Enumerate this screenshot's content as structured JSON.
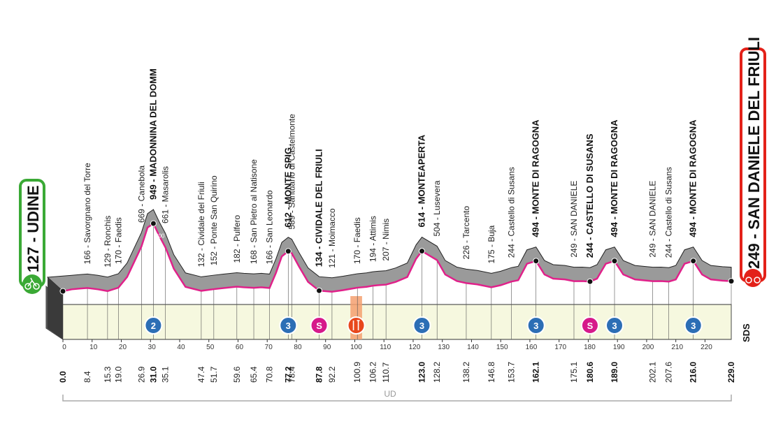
{
  "start": {
    "altitude": "127",
    "name": "UDINE",
    "label": "127 - UDINE",
    "color": "#3aa935"
  },
  "finish": {
    "altitude": "249",
    "name": "SAN DANIELE DEL FRIULI",
    "label": "249 - SAN DANIELE DEL FRIULI",
    "color": "#e32119"
  },
  "logo_text": "SDS",
  "region_label": "UD",
  "altitude_ticks": [
    "800",
    "600",
    "400",
    "200"
  ],
  "colors": {
    "profile_fill": "#9a9a9a",
    "profile_dark": "#3a3a3a",
    "base_fill": "#f6f8df",
    "route_line": "#e0218a",
    "feed_zone": "#f4a070",
    "kom_badge": "#2c6eb5",
    "sprint_badge": "#d6198a"
  },
  "chart_data": {
    "type": "elevation_profile",
    "x_unit": "km",
    "total_km": 229.0,
    "km_ticks": [
      "0",
      "10",
      "20",
      "30",
      "40",
      "50",
      "60",
      "70",
      "80",
      "90",
      "100",
      "110",
      "120",
      "130",
      "140",
      "150",
      "160",
      "170",
      "180",
      "190",
      "200",
      "210",
      "220"
    ],
    "distance_markers": [
      {
        "km": "0.0",
        "bold": true
      },
      {
        "km": "8.4"
      },
      {
        "km": "15.3"
      },
      {
        "km": "19.0"
      },
      {
        "km": "26.9"
      },
      {
        "km": "31.0",
        "bold": true
      },
      {
        "km": "35.1"
      },
      {
        "km": "47.4"
      },
      {
        "km": "51.7"
      },
      {
        "km": "59.6"
      },
      {
        "km": "65.4"
      },
      {
        "km": "70.8"
      },
      {
        "km": "77.2",
        "bold": true
      },
      {
        "km": "78.4"
      },
      {
        "km": "87.8",
        "bold": true
      },
      {
        "km": "92.2"
      },
      {
        "km": "100.9"
      },
      {
        "km": "106.2"
      },
      {
        "km": "110.7"
      },
      {
        "km": "123.0",
        "bold": true
      },
      {
        "km": "128.2"
      },
      {
        "km": "138.2"
      },
      {
        "km": "146.8"
      },
      {
        "km": "153.7"
      },
      {
        "km": "162.1",
        "bold": true
      },
      {
        "km": "175.1"
      },
      {
        "km": "180.6",
        "bold": true
      },
      {
        "km": "189.0",
        "bold": true
      },
      {
        "km": "202.1"
      },
      {
        "km": "207.6"
      },
      {
        "km": "216.0",
        "bold": true
      },
      {
        "km": "229.0",
        "bold": true
      }
    ],
    "places": [
      {
        "km": 8.4,
        "label": "166 - Savorgnano del Torre"
      },
      {
        "km": 15.3,
        "label": "129 - Ronchis"
      },
      {
        "km": 19.0,
        "label": "170 - Faedis"
      },
      {
        "km": 26.9,
        "label": "669 - Canebola"
      },
      {
        "km": 31.0,
        "label": "949 - MADONNINA DEL DOMM",
        "bold": true
      },
      {
        "km": 35.1,
        "label": "661 - Masarolis"
      },
      {
        "km": 47.4,
        "label": "132 - Cividale del Friuli"
      },
      {
        "km": 51.7,
        "label": "152 - Ponte San Quirino"
      },
      {
        "km": 59.6,
        "label": "182 - Pulfero"
      },
      {
        "km": 65.4,
        "label": "168 - San Pietro al Natisone"
      },
      {
        "km": 70.8,
        "label": "166 - San Leonardo"
      },
      {
        "km": 77.2,
        "label": "612 - MONTE SPIG",
        "bold": true
      },
      {
        "km": 78.4,
        "label": "589 - Santuario di Castelmonte"
      },
      {
        "km": 87.8,
        "label": "134 - CIVIDALE DEL FRIULI",
        "bold": true
      },
      {
        "km": 92.2,
        "label": "121 - Moimacco"
      },
      {
        "km": 100.9,
        "label": "170 - Faedis"
      },
      {
        "km": 106.2,
        "label": "194 - Attimis"
      },
      {
        "km": 110.7,
        "label": "207 - Nimis"
      },
      {
        "km": 123.0,
        "label": "614 - MONTEAPERTA",
        "bold": true
      },
      {
        "km": 128.2,
        "label": "504 - Lusevera"
      },
      {
        "km": 138.2,
        "label": "226 - Tarcento"
      },
      {
        "km": 146.8,
        "label": "175 - Buja"
      },
      {
        "km": 153.7,
        "label": "244 - Castello di Susans"
      },
      {
        "km": 162.1,
        "label": "494 - MONTE DI RAGOGNA",
        "bold": true
      },
      {
        "km": 175.1,
        "label": "249 - SAN DANIELE"
      },
      {
        "km": 180.6,
        "label": "244 - CASTELLO DI SUSANS",
        "bold": true
      },
      {
        "km": 189.0,
        "label": "494 - MONTE DI RAGOGNA",
        "bold": true
      },
      {
        "km": 202.1,
        "label": "249 - SAN DANIELE"
      },
      {
        "km": 207.6,
        "label": "244 - Castello di Susans"
      },
      {
        "km": 216.0,
        "label": "494 - MONTE DI RAGOGNA",
        "bold": true
      }
    ],
    "profile": [
      [
        0,
        127
      ],
      [
        3,
        150
      ],
      [
        6,
        160
      ],
      [
        8.4,
        166
      ],
      [
        12,
        150
      ],
      [
        15.3,
        129
      ],
      [
        19,
        170
      ],
      [
        22,
        300
      ],
      [
        26.9,
        669
      ],
      [
        29,
        900
      ],
      [
        31,
        949
      ],
      [
        33,
        800
      ],
      [
        35.1,
        661
      ],
      [
        38,
        400
      ],
      [
        42,
        180
      ],
      [
        47.4,
        132
      ],
      [
        51.7,
        152
      ],
      [
        55,
        165
      ],
      [
        59.6,
        182
      ],
      [
        62,
        175
      ],
      [
        65.4,
        168
      ],
      [
        68,
        175
      ],
      [
        70.8,
        166
      ],
      [
        73,
        350
      ],
      [
        75,
        550
      ],
      [
        77.2,
        612
      ],
      [
        78.4,
        589
      ],
      [
        81,
        420
      ],
      [
        84,
        240
      ],
      [
        87.8,
        134
      ],
      [
        92.2,
        121
      ],
      [
        96,
        140
      ],
      [
        100.9,
        170
      ],
      [
        104,
        180
      ],
      [
        106.2,
        194
      ],
      [
        108,
        200
      ],
      [
        110.7,
        207
      ],
      [
        114,
        240
      ],
      [
        118,
        300
      ],
      [
        121,
        520
      ],
      [
        123,
        614
      ],
      [
        128.2,
        504
      ],
      [
        131,
        330
      ],
      [
        135,
        250
      ],
      [
        138.2,
        226
      ],
      [
        142,
        210
      ],
      [
        146.8,
        175
      ],
      [
        150,
        200
      ],
      [
        153.7,
        244
      ],
      [
        156,
        260
      ],
      [
        159,
        460
      ],
      [
        162.1,
        494
      ],
      [
        165,
        330
      ],
      [
        168,
        280
      ],
      [
        172,
        270
      ],
      [
        175.1,
        249
      ],
      [
        178,
        250
      ],
      [
        180.6,
        244
      ],
      [
        183,
        280
      ],
      [
        186,
        460
      ],
      [
        189,
        494
      ],
      [
        192,
        330
      ],
      [
        196,
        270
      ],
      [
        199,
        260
      ],
      [
        202.1,
        249
      ],
      [
        205,
        250
      ],
      [
        207.6,
        244
      ],
      [
        210,
        270
      ],
      [
        213,
        460
      ],
      [
        216,
        494
      ],
      [
        219,
        330
      ],
      [
        222,
        270
      ],
      [
        226,
        255
      ],
      [
        229,
        249
      ]
    ],
    "kom_badges": [
      {
        "km": 31.0,
        "category": "2"
      },
      {
        "km": 77.2,
        "category": "3"
      },
      {
        "km": 123.0,
        "category": "3"
      },
      {
        "km": 162.1,
        "category": "3"
      },
      {
        "km": 189.0,
        "category": "3"
      },
      {
        "km": 216.0,
        "category": "3"
      }
    ],
    "sprints": [
      {
        "km": 87.8,
        "label": "S"
      },
      {
        "km": 180.6,
        "label": "S"
      }
    ],
    "feed_zone": {
      "from": 98.5,
      "to": 102.5
    }
  }
}
